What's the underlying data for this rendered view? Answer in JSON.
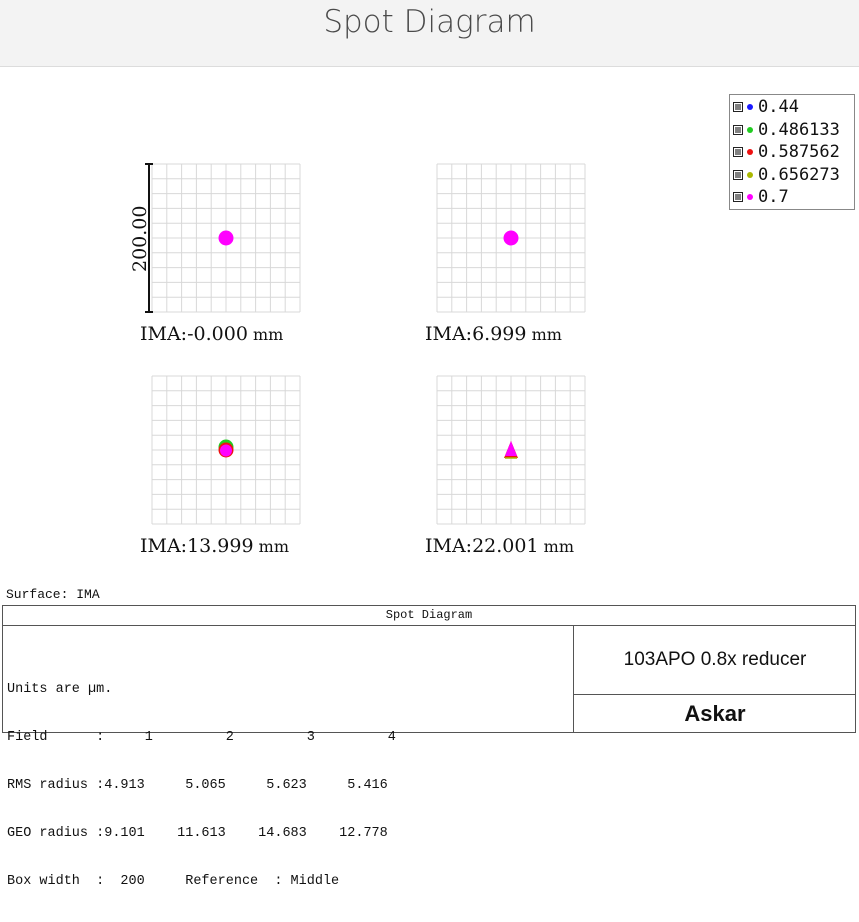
{
  "header": {
    "title": "Spot Diagram"
  },
  "scale_bar": {
    "label": "200.00"
  },
  "fields": [
    {
      "ima_label": "IMA:",
      "ima_value": "-0.000",
      "unit": "mm",
      "spot_color": "#ff00ff",
      "shape": "circle"
    },
    {
      "ima_label": "IMA:",
      "ima_value": "6.999",
      "unit": "mm",
      "spot_color": "#ff00ff",
      "shape": "circle"
    },
    {
      "ima_label": "IMA:",
      "ima_value": "13.999",
      "unit": "mm",
      "spot_color": "#ff00ff",
      "shape": "circle"
    },
    {
      "ima_label": "IMA:",
      "ima_value": "22.001",
      "unit": "mm",
      "spot_color": "#ff00ff",
      "shape": "triangle"
    }
  ],
  "legend": {
    "items": [
      {
        "label": "0.44",
        "color": "#1a1aff"
      },
      {
        "label": "0.486133",
        "color": "#22cc22"
      },
      {
        "label": "0.587562",
        "color": "#ee1111"
      },
      {
        "label": "0.656273",
        "color": "#aab800"
      },
      {
        "label": "0.7",
        "color": "#ff00ff"
      }
    ]
  },
  "surface": {
    "label": "Surface: IMA"
  },
  "info": {
    "title": "Spot Diagram",
    "lines": [
      "Units are µm.",
      "Field      :     1         2         3         4",
      "RMS radius :4.913     5.065     5.623     5.416",
      "GEO radius :9.101    11.613    14.683    12.778",
      "Box width  :  200     Reference  : Middle"
    ],
    "product": "103APO 0.8x reducer",
    "brand": "Askar"
  },
  "chart_data": {
    "type": "scatter",
    "title": "Spot Diagram",
    "surface": "IMA",
    "units": "µm",
    "box_width": 200,
    "reference": "Middle",
    "fields": [
      1,
      2,
      3,
      4
    ],
    "field_positions_mm": [
      -0.0,
      6.999,
      13.999,
      22.001
    ],
    "wavelengths": [
      "0.44",
      "0.486133",
      "0.587562",
      "0.656273",
      "0.7"
    ],
    "series": [
      {
        "name": "RMS radius",
        "values": [
          4.913,
          5.065,
          5.623,
          5.416
        ]
      },
      {
        "name": "GEO radius",
        "values": [
          9.101,
          11.613,
          14.683,
          12.778
        ]
      }
    ]
  }
}
